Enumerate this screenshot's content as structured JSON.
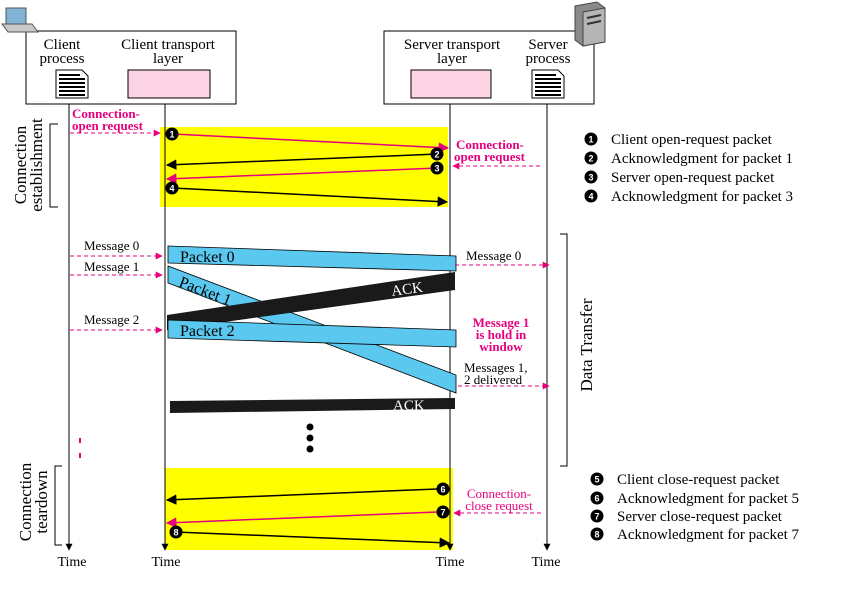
{
  "boxes": {
    "client_process": [
      "Client",
      "process"
    ],
    "client_transport": [
      "Client transport",
      "layer"
    ],
    "server_transport": [
      "Server transport",
      "layer"
    ],
    "server_process": [
      "Server",
      "process"
    ]
  },
  "phases": {
    "establishment": [
      "Connection",
      "establishment"
    ],
    "data_transfer": "Data Transfer",
    "teardown": [
      "Connection",
      "teardown"
    ]
  },
  "annotations": {
    "conn_open_client": [
      "Connection-",
      "open request"
    ],
    "conn_open_server": [
      "Connection-",
      "open request"
    ],
    "message0_client": "Message 0",
    "message1_client": "Message 1",
    "message2_client": "Message 2",
    "message0_server": "Message 0",
    "message1_hold": [
      "Message 1",
      "is hold in",
      "window"
    ],
    "messages_delivered": [
      "Messages 1,",
      "2 delivered"
    ],
    "conn_close_server": [
      "Connection-",
      "close request"
    ]
  },
  "packets": {
    "packet0": "Packet 0",
    "packet1": "Packet 1",
    "packet2": "Packet 2",
    "ack1": "ACK",
    "ack2": "ACK"
  },
  "badges": [
    "1",
    "2",
    "3",
    "4",
    "5",
    "6",
    "7",
    "8"
  ],
  "legend_open": [
    {
      "num": "1",
      "text": "Client open-request packet"
    },
    {
      "num": "2",
      "text": "Acknowledgment for packet 1"
    },
    {
      "num": "3",
      "text": "Server open-request packet"
    },
    {
      "num": "4",
      "text": "Acknowledgment for packet 3"
    }
  ],
  "legend_close": [
    {
      "num": "5",
      "text": "Client close-request packet"
    },
    {
      "num": "6",
      "text": "Acknowledgment for packet 5"
    },
    {
      "num": "7",
      "text": "Server close-request packet"
    },
    {
      "num": "8",
      "text": "Acknowledgment for packet 7"
    }
  ],
  "time_labels": [
    "Time",
    "Time",
    "Time",
    "Time"
  ],
  "icons": [
    "laptop-icon",
    "server-tower-icon",
    "document-icon"
  ],
  "colors": {
    "highlight": "#ffff00",
    "packet": "#5bc8f0",
    "ack": "#1a1a1a",
    "request": "#e6007e",
    "buffer": "#fcd3e3"
  }
}
